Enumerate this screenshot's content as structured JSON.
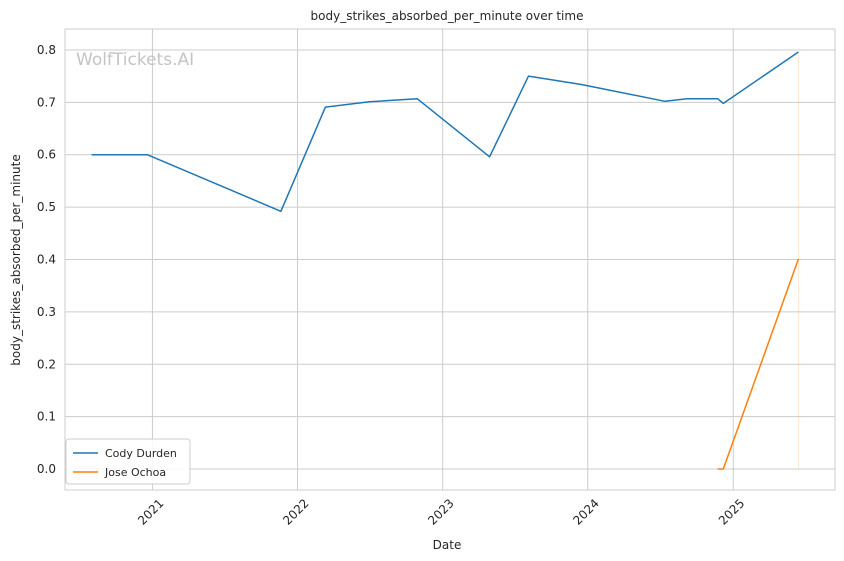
{
  "chart_data": {
    "type": "line",
    "title": "body_strikes_absorbed_per_minute over time",
    "xlabel": "Date",
    "ylabel": "body_strikes_absorbed_per_minute",
    "watermark": "WolfTickets.AI",
    "x_ticks": [
      "2021",
      "2022",
      "2023",
      "2024",
      "2025"
    ],
    "y_ticks": [
      "0.0",
      "0.1",
      "0.2",
      "0.3",
      "0.4",
      "0.5",
      "0.6",
      "0.7",
      "0.8"
    ],
    "ylim": [
      -0.04,
      0.84
    ],
    "xlim": [
      "2020-05-26",
      "2025-09-14"
    ],
    "grid": true,
    "legend_position": "lower-left",
    "series": [
      {
        "name": "Cody Durden",
        "color": "#1f77b4",
        "points": [
          {
            "date": "2020-08-01",
            "value": 0.6
          },
          {
            "date": "2020-12-19",
            "value": 0.6
          },
          {
            "date": "2021-11-20",
            "value": 0.492
          },
          {
            "date": "2022-03-12",
            "value": 0.691
          },
          {
            "date": "2022-07-01",
            "value": 0.701
          },
          {
            "date": "2022-10-29",
            "value": 0.707
          },
          {
            "date": "2023-04-29",
            "value": 0.596
          },
          {
            "date": "2023-08-05",
            "value": 0.75
          },
          {
            "date": "2023-12-16",
            "value": 0.734
          },
          {
            "date": "2024-07-13",
            "value": 0.702
          },
          {
            "date": "2024-09-07",
            "value": 0.707
          },
          {
            "date": "2024-11-23",
            "value": 0.707
          },
          {
            "date": "2024-12-07",
            "value": 0.698
          },
          {
            "date": "2025-06-14",
            "value": 0.796
          }
        ]
      },
      {
        "name": "Jose Ochoa",
        "color": "#ff7f0e",
        "points": [
          {
            "date": "2024-11-23",
            "value": 0.0
          },
          {
            "date": "2024-12-07",
            "value": 0.0
          },
          {
            "date": "2025-06-14",
            "value": 0.401
          }
        ]
      }
    ]
  }
}
